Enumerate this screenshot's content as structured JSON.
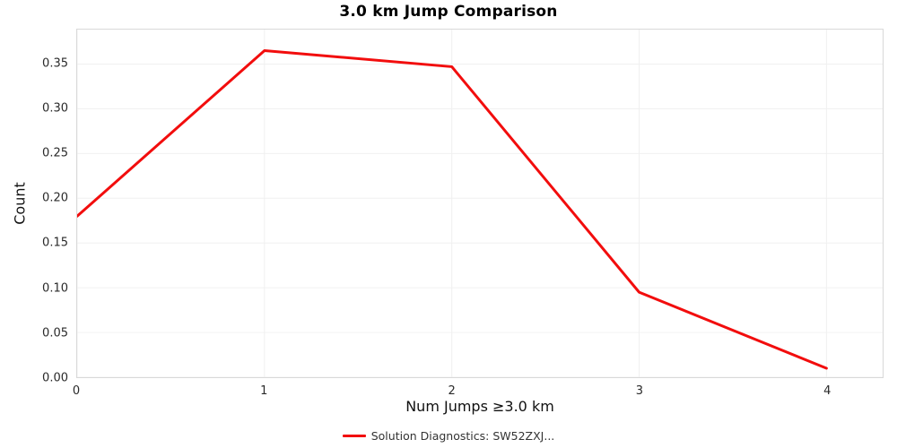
{
  "title": "3.0 km Jump Comparison",
  "y_axis": {
    "label": "Count",
    "ticks": [
      "0.00",
      "0.05",
      "0.10",
      "0.15",
      "0.20",
      "0.25",
      "0.30",
      "0.35"
    ]
  },
  "x_axis": {
    "label": "Num Jumps ≥3.0 km",
    "ticks": [
      "0",
      "1",
      "2",
      "3",
      "4"
    ]
  },
  "legend": {
    "label": "Solution Diagnostics: SW52ZXJ..."
  },
  "colors": {
    "line": "#f20d0d",
    "grid": "#f0f0f0",
    "border": "#d9d9d9"
  },
  "chart_data": {
    "type": "line",
    "title": "3.0 km Jump Comparison",
    "xlabel": "Num Jumps ≥3.0 km",
    "ylabel": "Count",
    "series_name": "Solution Diagnostics: SW52ZXJ...",
    "x": [
      0,
      1,
      2,
      3,
      4
    ],
    "values": [
      0.18,
      0.365,
      0.347,
      0.095,
      0.01
    ],
    "xlim": [
      0,
      4.3
    ],
    "ylim": [
      0,
      0.3885
    ],
    "grid": true,
    "legend_position": "bottom"
  }
}
